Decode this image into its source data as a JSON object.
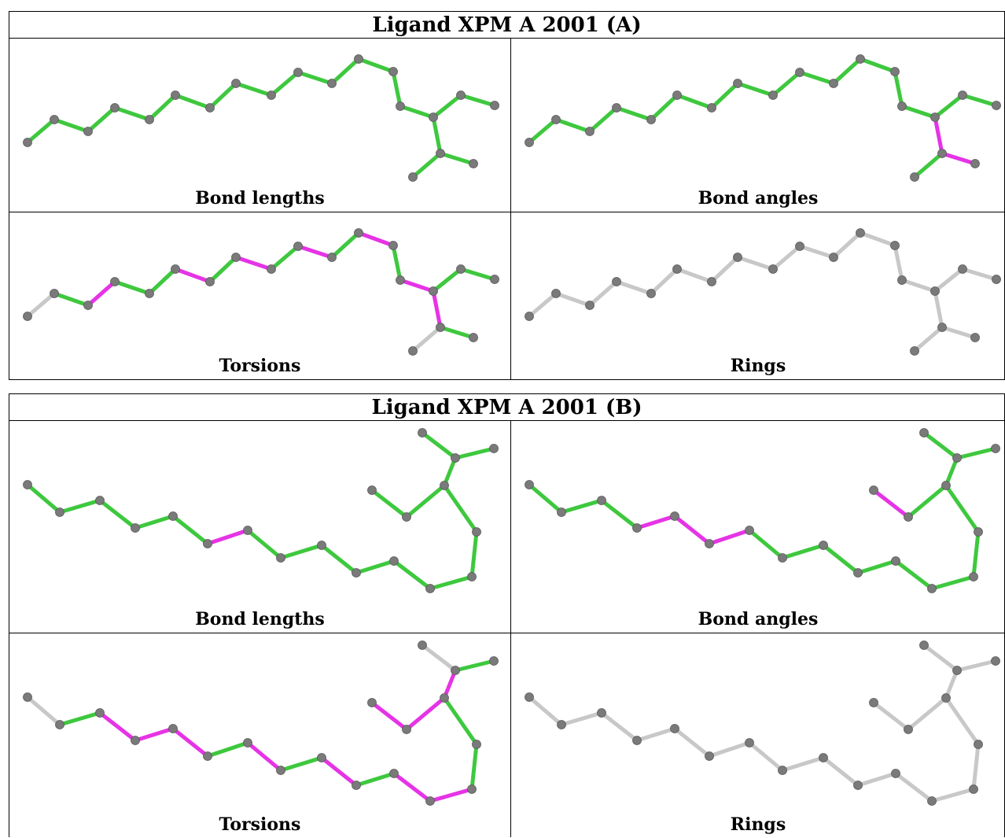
{
  "colors": {
    "green": "#3ec83e",
    "magenta": "#e633e6",
    "gray": "#c8c8c8",
    "atom": "#7a7a7a"
  },
  "panels": [
    {
      "title": "Ligand XPM A 2001 (A)",
      "cells": [
        {
          "label": "Bond lengths",
          "bond_colors": [
            "G",
            "G",
            "G",
            "G",
            "G",
            "G",
            "G",
            "G",
            "G",
            "G",
            "G",
            "G",
            "G",
            "G",
            "G",
            "G",
            "G",
            "G",
            "G",
            "G",
            "G",
            "G",
            "G"
          ]
        },
        {
          "label": "Bond angles",
          "bond_colors": [
            "G",
            "G",
            "G",
            "G",
            "G",
            "G",
            "G",
            "G",
            "G",
            "G",
            "G",
            "G",
            "G",
            "G",
            "G",
            "G",
            "M",
            "M",
            "G",
            "G",
            "M",
            "M",
            "G"
          ]
        },
        {
          "label": "Torsions",
          "bond_colors": [
            "N",
            "G",
            "M",
            "G",
            "G",
            "M",
            "G",
            "M",
            "G",
            "M",
            "G",
            "M",
            "G",
            "M",
            "G",
            "G",
            "M",
            "G",
            "N",
            "G",
            "M",
            "N",
            "N"
          ]
        },
        {
          "label": "Rings",
          "bond_colors": [
            "N",
            "N",
            "N",
            "N",
            "N",
            "N",
            "N",
            "N",
            "N",
            "N",
            "N",
            "N",
            "N",
            "N",
            "N",
            "N",
            "N",
            "N",
            "N",
            "N",
            "N",
            "N",
            "N"
          ]
        }
      ]
    },
    {
      "title": "Ligand XPM A 2001 (B)",
      "cells": [
        {
          "label": "Bond lengths",
          "bond_colors": [
            "G",
            "G",
            "G",
            "G",
            "G",
            "M",
            "G",
            "G",
            "G",
            "G",
            "G",
            "G",
            "G",
            "G",
            "G",
            "G",
            "G",
            "G",
            "G",
            "G",
            "G",
            "G",
            "G"
          ]
        },
        {
          "label": "Bond angles",
          "bond_colors": [
            "G",
            "G",
            "G",
            "M",
            "M",
            "M",
            "G",
            "G",
            "G",
            "G",
            "G",
            "G",
            "G",
            "G",
            "G",
            "M",
            "G",
            "G",
            "G",
            "M",
            "M",
            "M",
            "G"
          ]
        },
        {
          "label": "Torsions",
          "bond_colors": [
            "N",
            "G",
            "M",
            "M",
            "M",
            "G",
            "M",
            "G",
            "M",
            "G",
            "M",
            "M",
            "G",
            "G",
            "M",
            "M",
            "M",
            "G",
            "N",
            "G",
            "N",
            "N",
            "N"
          ]
        },
        {
          "label": "Rings",
          "bond_colors": [
            "N",
            "N",
            "N",
            "N",
            "N",
            "N",
            "N",
            "N",
            "N",
            "N",
            "N",
            "N",
            "N",
            "N",
            "N",
            "N",
            "N",
            "N",
            "N",
            "N",
            "N",
            "N",
            "N"
          ]
        }
      ]
    }
  ]
}
